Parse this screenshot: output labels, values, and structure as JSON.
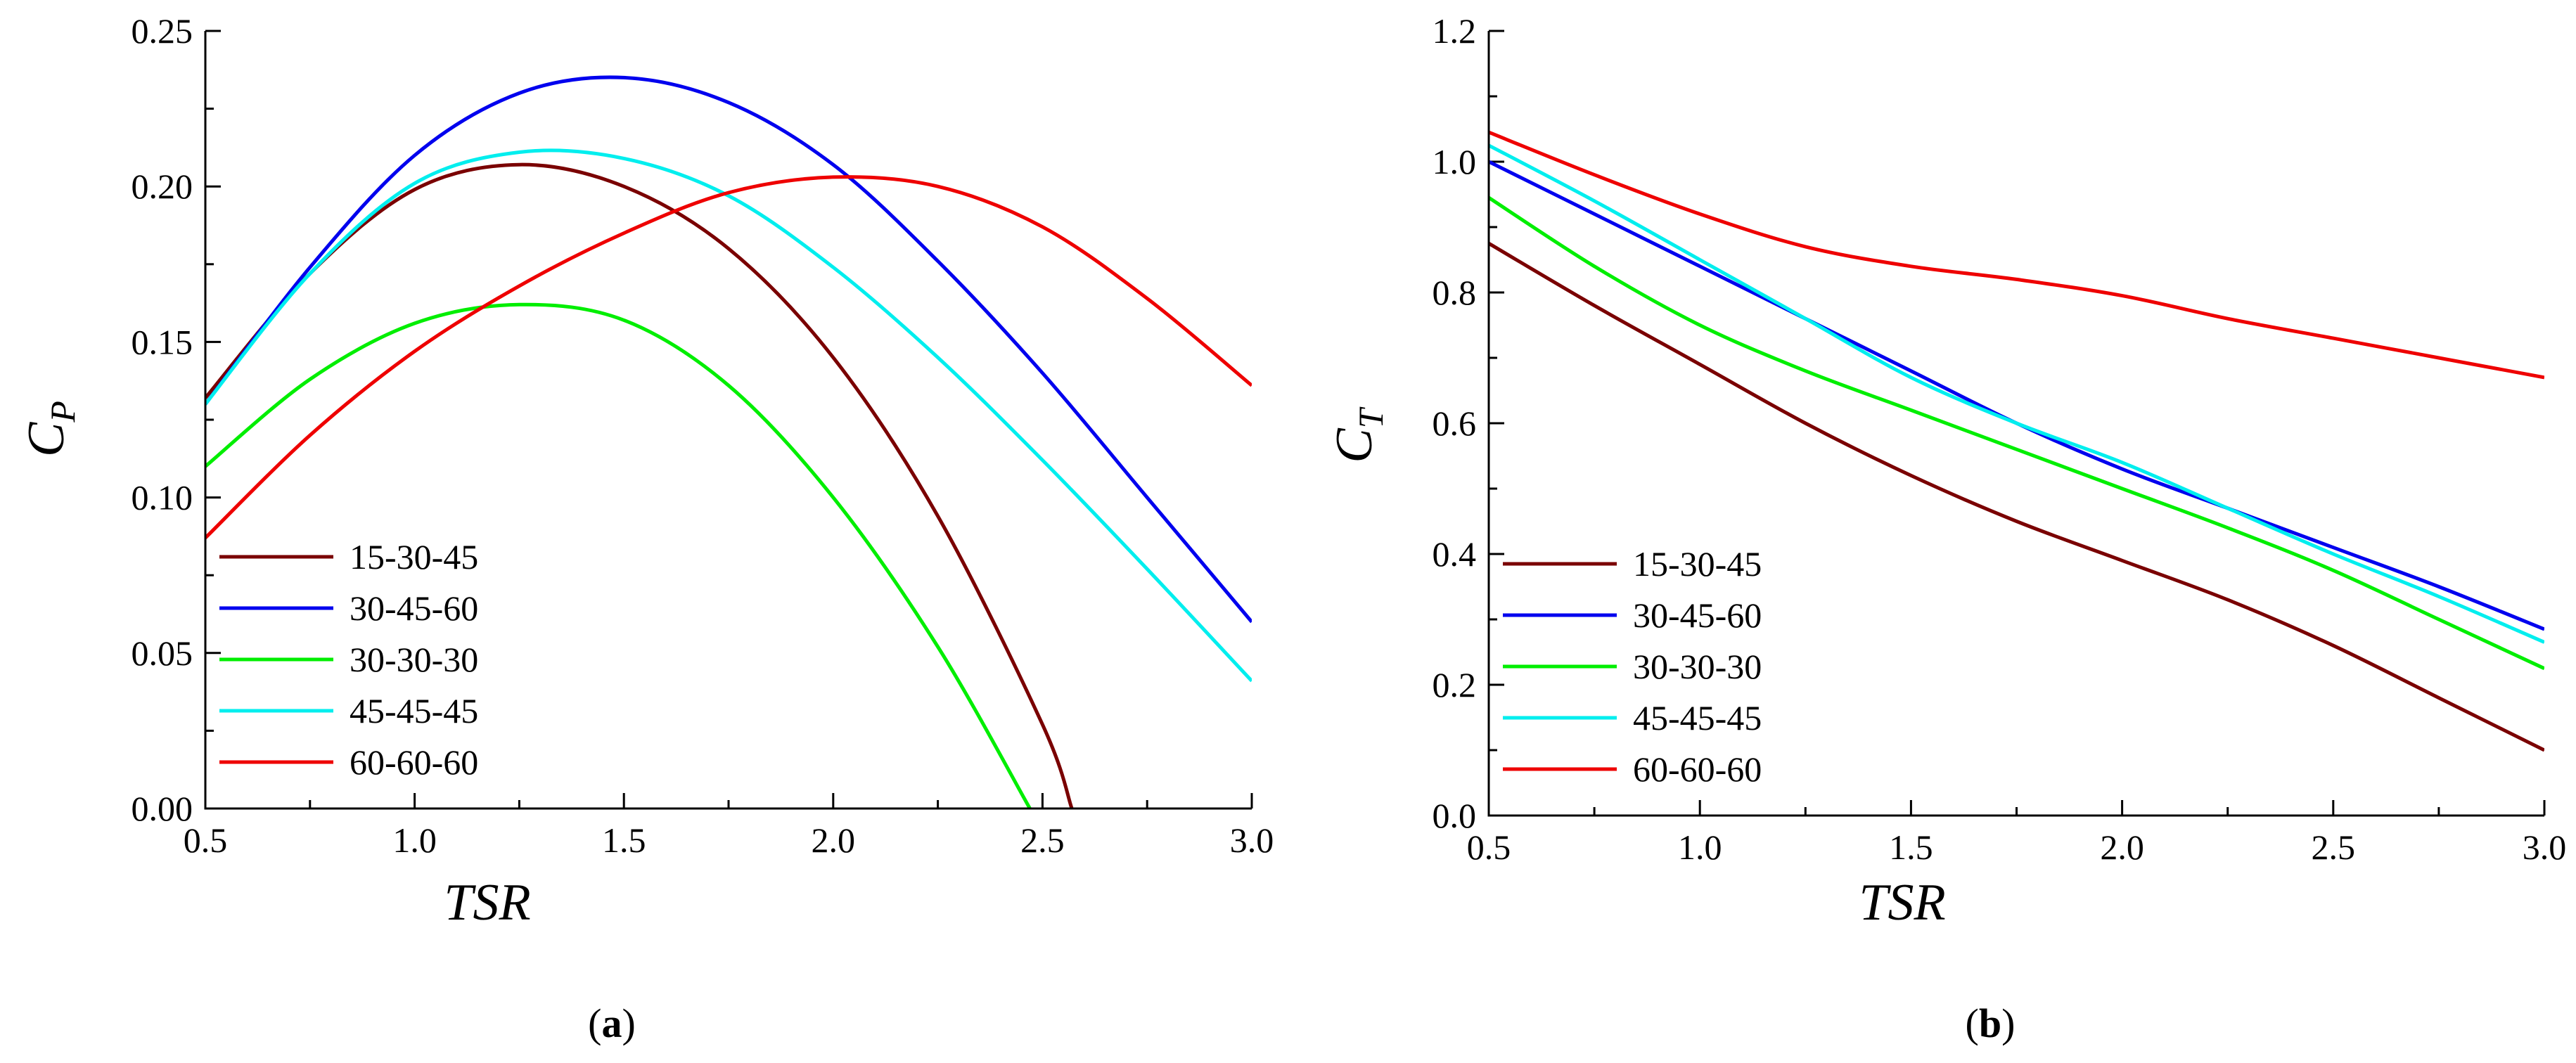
{
  "chart_data": [
    {
      "type": "line",
      "panel": "a",
      "panel_label": "a",
      "xlabel": "TSR",
      "ylabel": "C",
      "ylabel_sub": "P",
      "xlim": [
        0.5,
        3.0
      ],
      "ylim": [
        0.0,
        0.25
      ],
      "xticks": [
        "0.5",
        "1.0",
        "1.5",
        "2.0",
        "2.5",
        "3.0"
      ],
      "yticks": [
        "0.00",
        "0.05",
        "0.10",
        "0.15",
        "0.20",
        "0.25"
      ],
      "legend_position": "bottom-left",
      "series": [
        {
          "name": "15-30-45",
          "color": "#7a0000",
          "x": [
            0.5,
            0.75,
            1.0,
            1.25,
            1.5,
            1.75,
            2.0,
            2.25,
            2.5,
            2.57
          ],
          "y": [
            0.132,
            0.172,
            0.199,
            0.207,
            0.2,
            0.18,
            0.145,
            0.094,
            0.027,
            0.0
          ]
        },
        {
          "name": "30-45-60",
          "color": "#0000ee",
          "x": [
            0.5,
            0.75,
            1.0,
            1.25,
            1.5,
            1.75,
            2.0,
            2.25,
            2.5,
            2.75,
            3.0
          ],
          "y": [
            0.13,
            0.174,
            0.21,
            0.23,
            0.235,
            0.227,
            0.207,
            0.176,
            0.14,
            0.1,
            0.06
          ]
        },
        {
          "name": "30-30-30",
          "color": "#00ee00",
          "x": [
            0.5,
            0.75,
            1.0,
            1.25,
            1.5,
            1.75,
            2.0,
            2.25,
            2.47
          ],
          "y": [
            0.11,
            0.138,
            0.156,
            0.162,
            0.157,
            0.136,
            0.1,
            0.052,
            0.0
          ]
        },
        {
          "name": "45-45-45",
          "color": "#00eeee",
          "x": [
            0.5,
            0.75,
            1.0,
            1.25,
            1.5,
            1.75,
            2.0,
            2.25,
            2.5,
            2.75,
            3.0
          ],
          "y": [
            0.13,
            0.172,
            0.201,
            0.211,
            0.209,
            0.197,
            0.174,
            0.145,
            0.112,
            0.077,
            0.041
          ]
        },
        {
          "name": "60-60-60",
          "color": "#ee0000",
          "x": [
            0.5,
            0.75,
            1.0,
            1.25,
            1.5,
            1.75,
            2.0,
            2.25,
            2.5,
            2.75,
            3.0
          ],
          "y": [
            0.087,
            0.12,
            0.147,
            0.168,
            0.185,
            0.198,
            0.203,
            0.2,
            0.187,
            0.164,
            0.136
          ]
        }
      ]
    },
    {
      "type": "line",
      "panel": "b",
      "panel_label": "b",
      "xlabel": "TSR",
      "ylabel": "C",
      "ylabel_sub": "T",
      "xlim": [
        0.5,
        3.0
      ],
      "ylim": [
        0.0,
        1.2
      ],
      "xticks": [
        "0.5",
        "1.0",
        "1.5",
        "2.0",
        "2.5",
        "3.0"
      ],
      "yticks": [
        "0.0",
        "0.2",
        "0.4",
        "0.6",
        "0.8",
        "1.0",
        "1.2"
      ],
      "legend_position": "bottom-left",
      "series": [
        {
          "name": "15-30-45",
          "color": "#7a0000",
          "x": [
            0.5,
            0.75,
            1.0,
            1.25,
            1.5,
            1.75,
            2.0,
            2.25,
            2.5,
            2.75,
            3.0
          ],
          "y": [
            0.875,
            0.78,
            0.69,
            0.6,
            0.52,
            0.45,
            0.39,
            0.33,
            0.26,
            0.18,
            0.1
          ]
        },
        {
          "name": "30-45-60",
          "color": "#0000ee",
          "x": [
            0.5,
            0.75,
            1.0,
            1.25,
            1.5,
            1.75,
            2.0,
            2.25,
            2.5,
            2.75,
            3.0
          ],
          "y": [
            1.0,
            0.92,
            0.84,
            0.76,
            0.68,
            0.6,
            0.53,
            0.47,
            0.41,
            0.35,
            0.285
          ]
        },
        {
          "name": "30-30-30",
          "color": "#00ee00",
          "x": [
            0.5,
            0.75,
            1.0,
            1.25,
            1.5,
            1.75,
            2.0,
            2.25,
            2.5,
            2.75,
            3.0
          ],
          "y": [
            0.945,
            0.84,
            0.75,
            0.68,
            0.62,
            0.56,
            0.5,
            0.44,
            0.375,
            0.3,
            0.225
          ]
        },
        {
          "name": "45-45-45",
          "color": "#00eeee",
          "x": [
            0.5,
            0.75,
            1.0,
            1.25,
            1.5,
            1.75,
            2.0,
            2.25,
            2.5,
            2.75,
            3.0
          ],
          "y": [
            1.025,
            0.94,
            0.85,
            0.76,
            0.67,
            0.6,
            0.54,
            0.47,
            0.4,
            0.335,
            0.265
          ]
        },
        {
          "name": "60-60-60",
          "color": "#ee0000",
          "x": [
            0.5,
            0.75,
            1.0,
            1.25,
            1.5,
            1.75,
            2.0,
            2.25,
            2.5,
            2.75,
            3.0
          ],
          "y": [
            1.045,
            0.98,
            0.92,
            0.87,
            0.84,
            0.82,
            0.795,
            0.76,
            0.73,
            0.7,
            0.67
          ]
        }
      ]
    }
  ]
}
